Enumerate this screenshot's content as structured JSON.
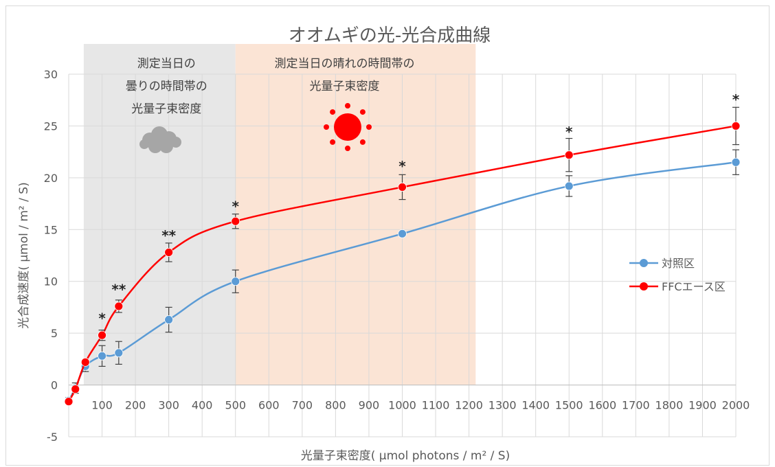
{
  "chart_data": {
    "type": "line",
    "title": "オオムギの光-光合成曲線",
    "xlabel": "光量子束密度( µmol photons / m² / S)",
    "ylabel": "光合成速度( µmol / m² / S)",
    "xlim": [
      0,
      2000
    ],
    "ylim": [
      -5,
      30
    ],
    "x_ticks": [
      100,
      200,
      300,
      400,
      500,
      600,
      700,
      800,
      900,
      1000,
      1100,
      1200,
      1300,
      1400,
      1500,
      1600,
      1700,
      1800,
      1900,
      2000
    ],
    "y_ticks": [
      -5,
      0,
      5,
      10,
      15,
      20,
      25,
      30
    ],
    "grid": true,
    "legend_position": "right",
    "series": [
      {
        "name": "対照区",
        "color": "#5b9bd5",
        "x": [
          0,
          20,
          50,
          100,
          150,
          300,
          500,
          1000,
          1500,
          2000
        ],
        "y": [
          -1.5,
          -0.3,
          1.8,
          2.8,
          3.1,
          6.3,
          10.0,
          14.6,
          19.2,
          21.5
        ],
        "err": [
          0.3,
          0.5,
          0.5,
          1.0,
          1.1,
          1.2,
          1.1,
          0.2,
          1.0,
          1.2
        ]
      },
      {
        "name": "FFCエース区",
        "color": "#ff0000",
        "x": [
          0,
          20,
          50,
          100,
          150,
          300,
          500,
          1000,
          1500,
          2000
        ],
        "y": [
          -1.6,
          -0.4,
          2.2,
          4.8,
          7.6,
          12.8,
          15.8,
          19.1,
          22.2,
          25.0
        ],
        "err": [
          0.2,
          0.2,
          0.2,
          0.5,
          0.6,
          0.9,
          0.7,
          1.2,
          1.6,
          1.8
        ]
      }
    ],
    "significance": [
      {
        "x": 100,
        "y": 6.5,
        "label": "*"
      },
      {
        "x": 150,
        "y": 9.3,
        "label": "**"
      },
      {
        "x": 300,
        "y": 14.5,
        "label": "**"
      },
      {
        "x": 500,
        "y": 17.3,
        "label": "*"
      },
      {
        "x": 1000,
        "y": 21.2,
        "label": "*"
      },
      {
        "x": 1500,
        "y": 24.5,
        "label": "*"
      },
      {
        "x": 2000,
        "y": 27.6,
        "label": "*"
      }
    ],
    "shaded_regions": [
      {
        "from": 45,
        "to": 500,
        "color": "#e7e7e7",
        "lines": [
          "測定当日の",
          "曇りの時間帯の",
          "光量子束密度"
        ],
        "icon": "cloud-icon"
      },
      {
        "from": 500,
        "to": 1220,
        "color": "#fbe4d5",
        "lines": [
          "測定当日の晴れの時間帯の",
          "光量子束密度"
        ],
        "icon": "sun-icon"
      }
    ]
  }
}
